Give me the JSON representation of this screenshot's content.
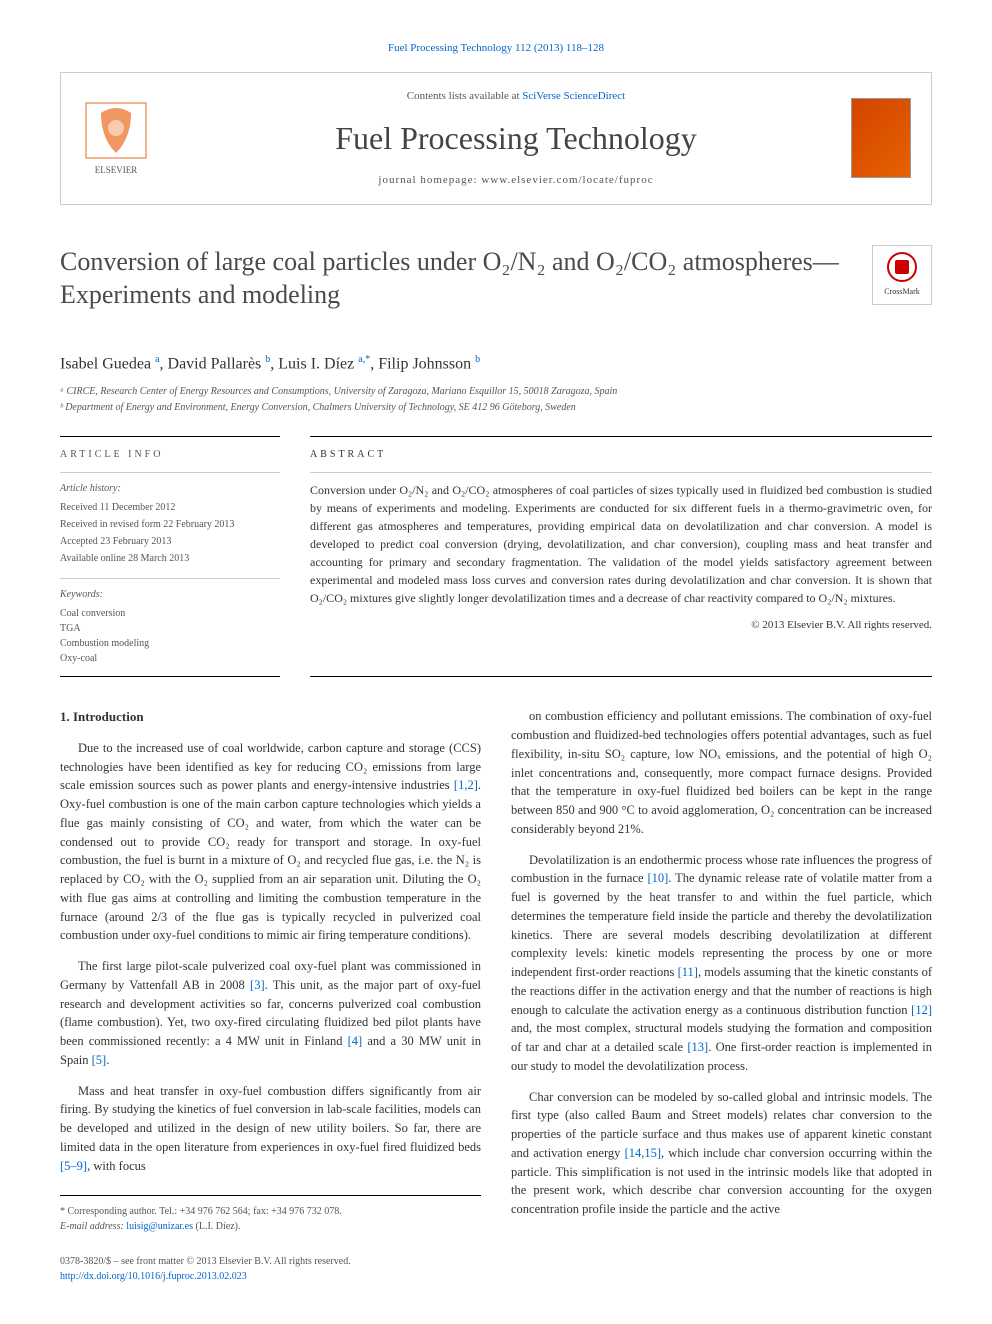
{
  "header": {
    "citation_link": "Fuel Processing Technology 112 (2013) 118–128",
    "contents_prefix": "Contents lists available at ",
    "contents_link": "SciVerse ScienceDirect",
    "journal_name": "Fuel Processing Technology",
    "homepage_prefix": "journal homepage: ",
    "homepage_url": "www.elsevier.com/locate/fuproc"
  },
  "title": "Conversion of large coal particles under O₂/N₂ and O₂/CO₂ atmospheres—Experiments and modeling",
  "crossmark_label": "CrossMark",
  "authors_html": "Isabel Guedea <sup>a</sup>, David Pallarès <sup>b</sup>, Luis I. Díez <sup>a,*</sup>, Filip Johnsson <sup>b</sup>",
  "affiliations": [
    "ᵃ CIRCE, Research Center of Energy Resources and Consumptions, University of Zaragoza, Mariano Esquillor 15, 50018 Zaragoza, Spain",
    "ᵇ Department of Energy and Environment, Energy Conversion, Chalmers University of Technology, SE 412 96 Göteborg, Sweden"
  ],
  "article_info": {
    "heading": "ARTICLE INFO",
    "history_label": "Article history:",
    "history": [
      "Received 11 December 2012",
      "Received in revised form 22 February 2013",
      "Accepted 23 February 2013",
      "Available online 28 March 2013"
    ],
    "keywords_label": "Keywords:",
    "keywords": [
      "Coal conversion",
      "TGA",
      "Combustion modeling",
      "Oxy-coal"
    ]
  },
  "abstract": {
    "heading": "ABSTRACT",
    "text": "Conversion under O₂/N₂ and O₂/CO₂ atmospheres of coal particles of sizes typically used in fluidized bed combustion is studied by means of experiments and modeling. Experiments are conducted for six different fuels in a thermo-gravimetric oven, for different gas atmospheres and temperatures, providing empirical data on devolatilization and char conversion. A model is developed to predict coal conversion (drying, devolatilization, and char conversion), coupling mass and heat transfer and accounting for primary and secondary fragmentation. The validation of the model yields satisfactory agreement between experimental and modeled mass loss curves and conversion rates during devolatilization and char conversion. It is shown that O₂/CO₂ mixtures give slightly longer devolatilization times and a decrease of char reactivity compared to O₂/N₂ mixtures.",
    "copyright": "© 2013 Elsevier B.V. All rights reserved."
  },
  "intro_heading": "1. Introduction",
  "left_paragraphs": [
    "Due to the increased use of coal worldwide, carbon capture and storage (CCS) technologies have been identified as key for reducing CO₂ emissions from large scale emission sources such as power plants and energy-intensive industries [1,2]. Oxy-fuel combustion is one of the main carbon capture technologies which yields a flue gas mainly consisting of CO₂ and water, from which the water can be condensed out to provide CO₂ ready for transport and storage. In oxy-fuel combustion, the fuel is burnt in a mixture of O₂ and recycled flue gas, i.e. the N₂ is replaced by CO₂ with the O₂ supplied from an air separation unit. Diluting the O₂ with flue gas aims at controlling and limiting the combustion temperature in the furnace (around 2/3 of the flue gas is typically recycled in pulverized coal combustion under oxy-fuel conditions to mimic air firing temperature conditions).",
    "The first large pilot-scale pulverized coal oxy-fuel plant was commissioned in Germany by Vattenfall AB in 2008 [3]. This unit, as the major part of oxy-fuel research and development activities so far, concerns pulverized coal combustion (flame combustion). Yet, two oxy-fired circulating fluidized bed pilot plants have been commissioned recently: a 4 MW unit in Finland [4] and a 30 MW unit in Spain [5].",
    "Mass and heat transfer in oxy-fuel combustion differs significantly from air firing. By studying the kinetics of fuel conversion in lab-scale facilities, models can be developed and utilized in the design of new utility boilers. So far, there are limited data in the open literature from experiences in oxy-fuel fired fluidized beds [5–9], with focus"
  ],
  "right_paragraphs": [
    "on combustion efficiency and pollutant emissions. The combination of oxy-fuel combustion and fluidized-bed technologies offers potential advantages, such as fuel flexibility, in-situ SO₂ capture, low NOₓ emissions, and the potential of high O₂ inlet concentrations and, consequently, more compact furnace designs. Provided that the temperature in oxy-fuel fluidized bed boilers can be kept in the range between 850 and 900 °C to avoid agglomeration, O₂ concentration can be increased considerably beyond 21%.",
    "Devolatilization is an endothermic process whose rate influences the progress of combustion in the furnace [10]. The dynamic release rate of volatile matter from a fuel is governed by the heat transfer to and within the fuel particle, which determines the temperature field inside the particle and thereby the devolatilization kinetics. There are several models describing devolatilization at different complexity levels: kinetic models representing the process by one or more independent first-order reactions [11], models assuming that the kinetic constants of the reactions differ in the activation energy and that the number of reactions is high enough to calculate the activation energy as a continuous distribution function [12] and, the most complex, structural models studying the formation and composition of tar and char at a detailed scale [13]. One first-order reaction is implemented in our study to model the devolatilization process.",
    "Char conversion can be modeled by so-called global and intrinsic models. The first type (also called Baum and Street models) relates char conversion to the properties of the particle surface and thus makes use of apparent kinetic constant and activation energy [14,15], which include char conversion occurring within the particle. This simplification is not used in the intrinsic models like that adopted in the present work, which describe char conversion accounting for the oxygen concentration profile inside the particle and the active"
  ],
  "corresponding": {
    "line1": "* Corresponding author. Tel.: +34 976 762 564; fax: +34 976 732 078.",
    "line2_label": "E-mail address: ",
    "line2_email": "luisig@unizar.es",
    "line2_suffix": " (L.I. Díez)."
  },
  "footer": {
    "issn_line": "0378-3820/$ – see front matter © 2013 Elsevier B.V. All rights reserved.",
    "doi": "http://dx.doi.org/10.1016/j.fuproc.2013.02.023"
  },
  "colors": {
    "link": "#0066cc",
    "text": "#333333",
    "muted": "#555555",
    "elsevier_orange": "#ea6b1f"
  }
}
